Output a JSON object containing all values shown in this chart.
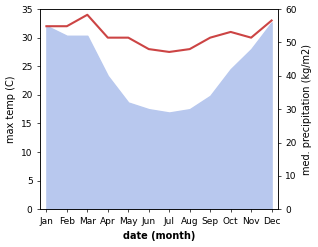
{
  "months": [
    "Jan",
    "Feb",
    "Mar",
    "Apr",
    "May",
    "Jun",
    "Jul",
    "Aug",
    "Sep",
    "Oct",
    "Nov",
    "Dec"
  ],
  "x": [
    0,
    1,
    2,
    3,
    4,
    5,
    6,
    7,
    8,
    9,
    10,
    11
  ],
  "temperature": [
    32.0,
    32.0,
    34.0,
    30.0,
    30.0,
    28.0,
    27.5,
    28.0,
    30.0,
    31.0,
    30.0,
    33.0
  ],
  "precipitation": [
    55,
    52,
    52,
    40,
    32,
    30,
    29,
    30,
    34,
    42,
    48,
    56
  ],
  "temp_color": "#cc4444",
  "precip_color": "#b8c8ee",
  "ylabel_left": "max temp (C)",
  "ylabel_right": "med. precipitation (kg/m2)",
  "xlabel": "date (month)",
  "ylim_left": [
    0,
    35
  ],
  "ylim_right": [
    0,
    60
  ],
  "yticks_left": [
    0,
    5,
    10,
    15,
    20,
    25,
    30,
    35
  ],
  "yticks_right": [
    0,
    10,
    20,
    30,
    40,
    50,
    60
  ],
  "bg_color": "#ffffff",
  "temp_linewidth": 1.5,
  "label_fontsize": 7,
  "tick_fontsize": 6.5
}
